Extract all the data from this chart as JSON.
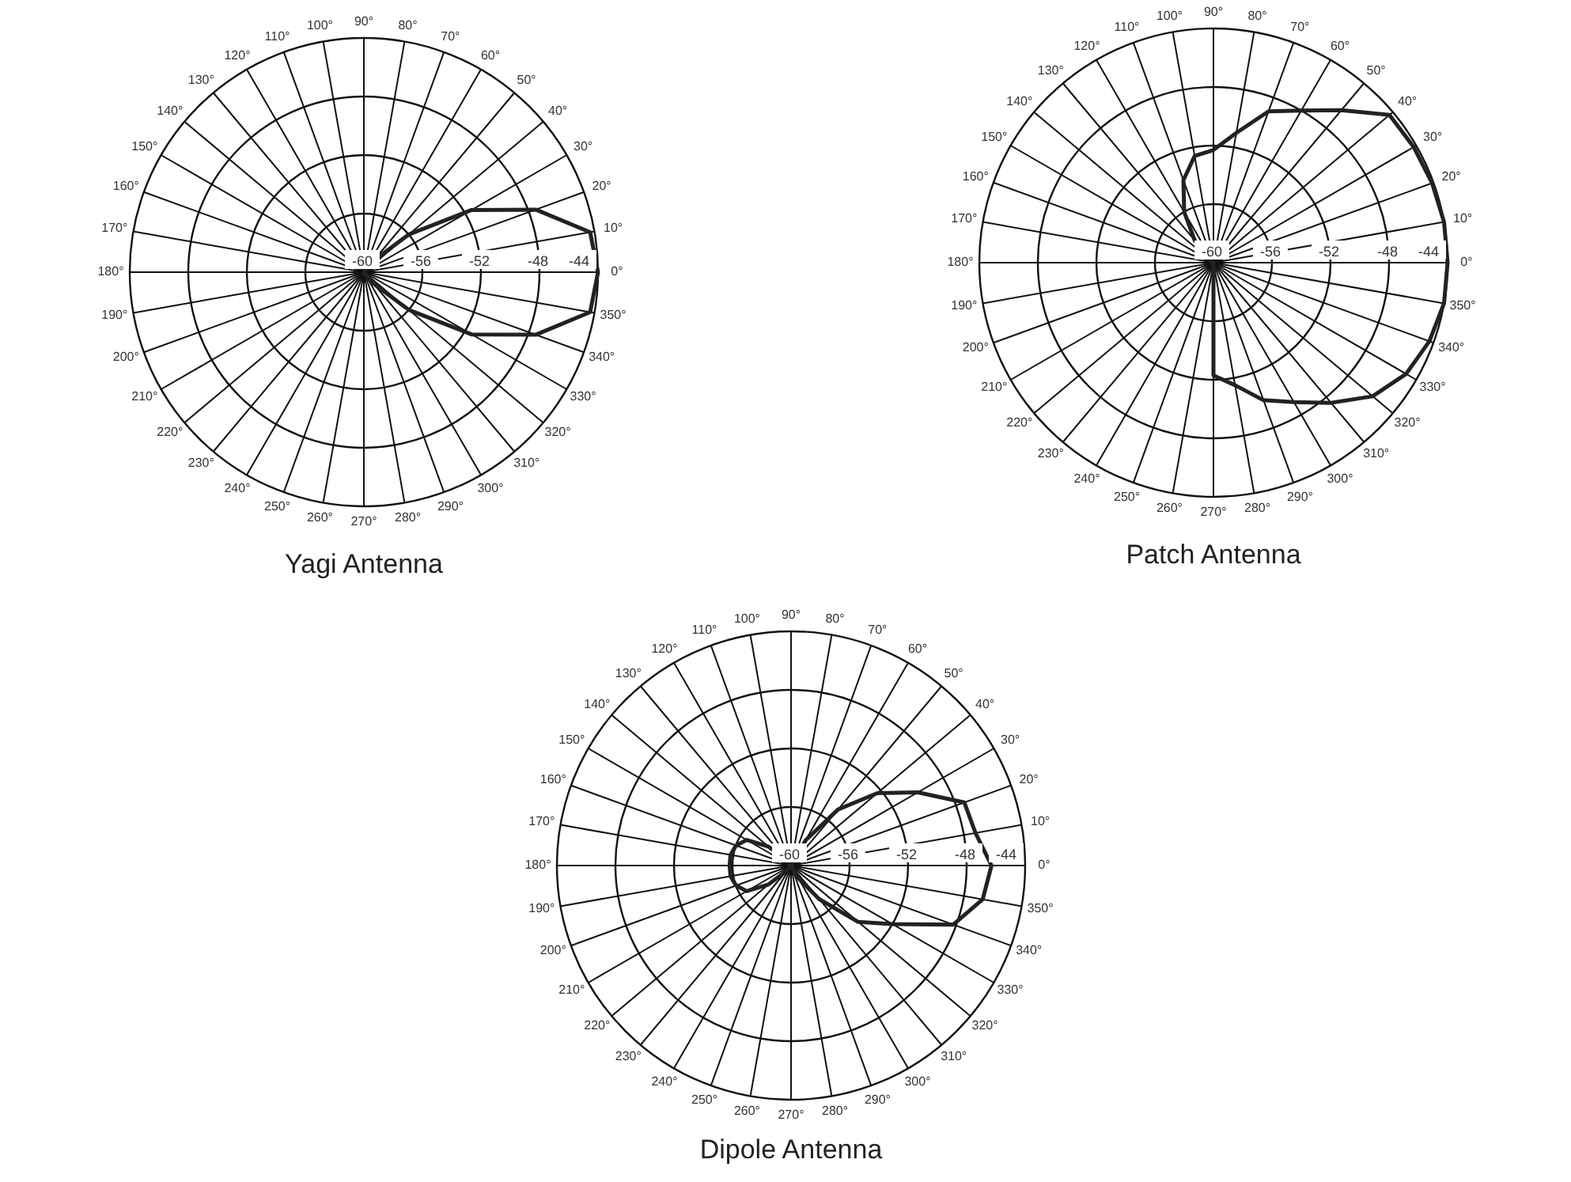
{
  "chart_data": [
    {
      "type": "radar",
      "title": "Yagi Antenna",
      "categories": [
        "90°",
        "80°",
        "70°",
        "60°",
        "50°",
        "40°",
        "30°",
        "20°",
        "10°",
        "0°",
        "350°",
        "340°",
        "330°",
        "320°",
        "310°",
        "300°",
        "290°",
        "280°",
        "270°",
        "260°",
        "250°",
        "240°",
        "230°",
        "220°",
        "210°",
        "200°",
        "190°",
        "180°",
        "170°",
        "160°",
        "150°",
        "140°",
        "130°",
        "120°",
        "110°",
        "100°"
      ],
      "ylim": [
        -60,
        -44
      ],
      "yticks": [
        -60,
        -56,
        -52,
        -48,
        -44
      ],
      "grid": true,
      "series": [
        {
          "color": "#222222",
          "values": [
            -60,
            -60,
            -60,
            -60,
            -59,
            -56,
            -51.5,
            -47.5,
            -44.3,
            -44,
            -44.3,
            -47.5,
            -51.5,
            -56,
            -59,
            -60,
            -60,
            -60,
            -60,
            -60,
            -60,
            -60,
            -60,
            -60,
            -60,
            -60,
            -60,
            -60,
            -60,
            -60,
            -60,
            -60,
            -60,
            -60,
            -60,
            -60
          ]
        }
      ]
    },
    {
      "type": "radar",
      "title": "Patch Antenna",
      "categories": [
        "90°",
        "80°",
        "70°",
        "60°",
        "50°",
        "40°",
        "30°",
        "20°",
        "10°",
        "0°",
        "350°",
        "340°",
        "330°",
        "320°",
        "310°",
        "300°",
        "290°",
        "280°",
        "270°",
        "260°",
        "250°",
        "240°",
        "230°",
        "220°",
        "210°",
        "200°",
        "190°",
        "180°",
        "170°",
        "160°",
        "150°",
        "140°",
        "130°",
        "120°",
        "110°",
        "100°"
      ],
      "ylim": [
        -60,
        -44
      ],
      "yticks": [
        -60,
        -56,
        -52,
        -48,
        -44
      ],
      "grid": true,
      "series": [
        {
          "color": "#222222",
          "values": [
            -52.3,
            -51,
            -49,
            -48,
            -46.4,
            -44.3,
            -44.2,
            -44.1,
            -44,
            -44,
            -44,
            -44.3,
            -44.8,
            -45.8,
            -47.5,
            -49,
            -50,
            -51.5,
            -52.3,
            -60,
            -60,
            -60,
            -60,
            -60,
            -60,
            -60,
            -60,
            -60,
            -60,
            -60,
            -60,
            -59.5,
            -58,
            -56,
            -54,
            -52.6
          ]
        }
      ]
    },
    {
      "type": "radar",
      "title": "Dipole Antenna",
      "categories": [
        "90°",
        "80°",
        "70°",
        "60°",
        "50°",
        "40°",
        "30°",
        "20°",
        "10°",
        "0°",
        "350°",
        "340°",
        "330°",
        "320°",
        "310°",
        "300°",
        "290°",
        "280°",
        "270°",
        "260°",
        "250°",
        "240°",
        "230°",
        "220°",
        "210°",
        "200°",
        "190°",
        "180°",
        "170°",
        "160°",
        "150°",
        "140°",
        "130°",
        "120°",
        "110°",
        "100°"
      ],
      "ylim": [
        -60,
        -44
      ],
      "yticks": [
        -60,
        -56,
        -52,
        -48,
        -44
      ],
      "grid": true,
      "series": [
        {
          "color": "#222222",
          "values": [
            -60,
            -60,
            -60,
            -58,
            -55,
            -52.3,
            -50,
            -47.4,
            -47.2,
            -46.3,
            -46.7,
            -48.2,
            -52,
            -54,
            -57,
            -59,
            -60,
            -60,
            -60,
            -60,
            -60,
            -60,
            -59.5,
            -58,
            -56.5,
            -56,
            -55.8,
            -55.8,
            -55.8,
            -56,
            -56.5,
            -58,
            -59.5,
            -60,
            -60,
            -60
          ]
        }
      ]
    }
  ]
}
